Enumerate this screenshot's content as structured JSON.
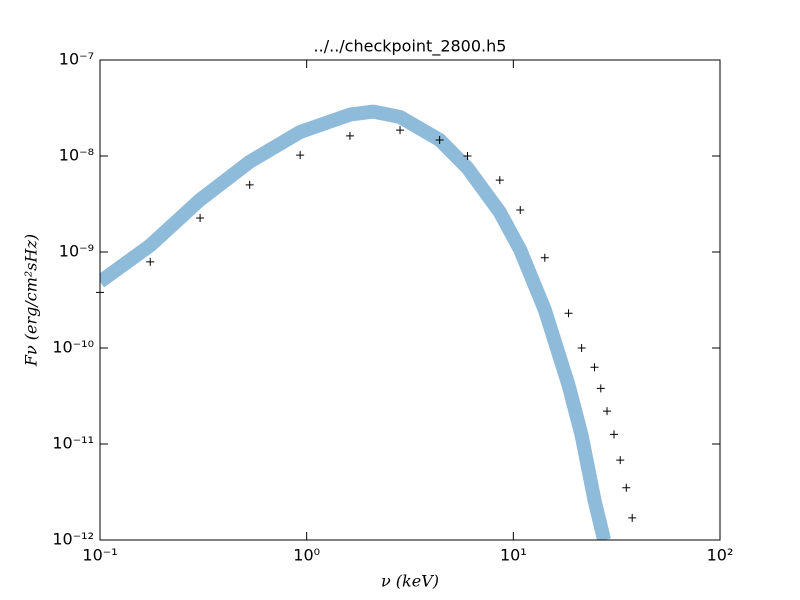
{
  "chart_data": {
    "type": "line",
    "title": "../../checkpoint_2800.h5",
    "x_label": "ν (keV)",
    "y_label": "Fν (erg/cm²sHz)",
    "xscale": "log",
    "yscale": "log",
    "xlim": [
      0.1,
      100
    ],
    "ylim": [
      1e-12,
      1e-07
    ],
    "xticks": [
      {
        "value": 0.1,
        "label": "10⁻¹"
      },
      {
        "value": 1,
        "label": "10⁰"
      },
      {
        "value": 10,
        "label": "10¹"
      },
      {
        "value": 100,
        "label": "10²"
      }
    ],
    "yticks": [
      {
        "value": 1e-12,
        "label": "10⁻¹²"
      },
      {
        "value": 1e-11,
        "label": "10⁻¹¹"
      },
      {
        "value": 1e-10,
        "label": "10⁻¹⁰"
      },
      {
        "value": 1e-09,
        "label": "10⁻⁹"
      },
      {
        "value": 1e-08,
        "label": "10⁻⁸"
      },
      {
        "value": 1e-07,
        "label": "10⁻⁷"
      }
    ],
    "series": [
      {
        "style": "line",
        "color": "#8fbbdb",
        "x": [
          0.1,
          0.175,
          0.305,
          0.53,
          0.93,
          1.62,
          2.1,
          2.83,
          4.4,
          6.0,
          8.6,
          10.8,
          14.2,
          18.5,
          21.4,
          24.7,
          27.5
        ],
        "values": [
          4.9e-10,
          1.17e-09,
          3.5e-09,
          8.7e-09,
          1.78e-08,
          2.7e-08,
          2.9e-08,
          2.55e-08,
          1.47e-08,
          7.5e-09,
          2.6e-09,
          1.05e-09,
          2.5e-10,
          4.1e-11,
          1.23e-11,
          2.6e-12,
          1e-12
        ]
      },
      {
        "style": "marker",
        "color": "#000000",
        "x": [
          0.1,
          0.175,
          0.305,
          0.53,
          0.93,
          1.62,
          2.83,
          4.4,
          6.0,
          8.6,
          10.8,
          14.2,
          18.5,
          21.4,
          24.7,
          26.5,
          28.4,
          30.7,
          32.9,
          35.2,
          37.6
        ],
        "values": [
          3.8e-10,
          7.9e-10,
          2.26e-09,
          5e-09,
          1.02e-08,
          1.62e-08,
          1.86e-08,
          1.47e-08,
          1e-08,
          5.6e-09,
          2.74e-09,
          8.7e-10,
          2.3e-10,
          1e-10,
          6.3e-11,
          3.8e-11,
          2.2e-11,
          1.26e-11,
          6.8e-12,
          3.5e-12,
          1.7e-12
        ]
      }
    ]
  }
}
